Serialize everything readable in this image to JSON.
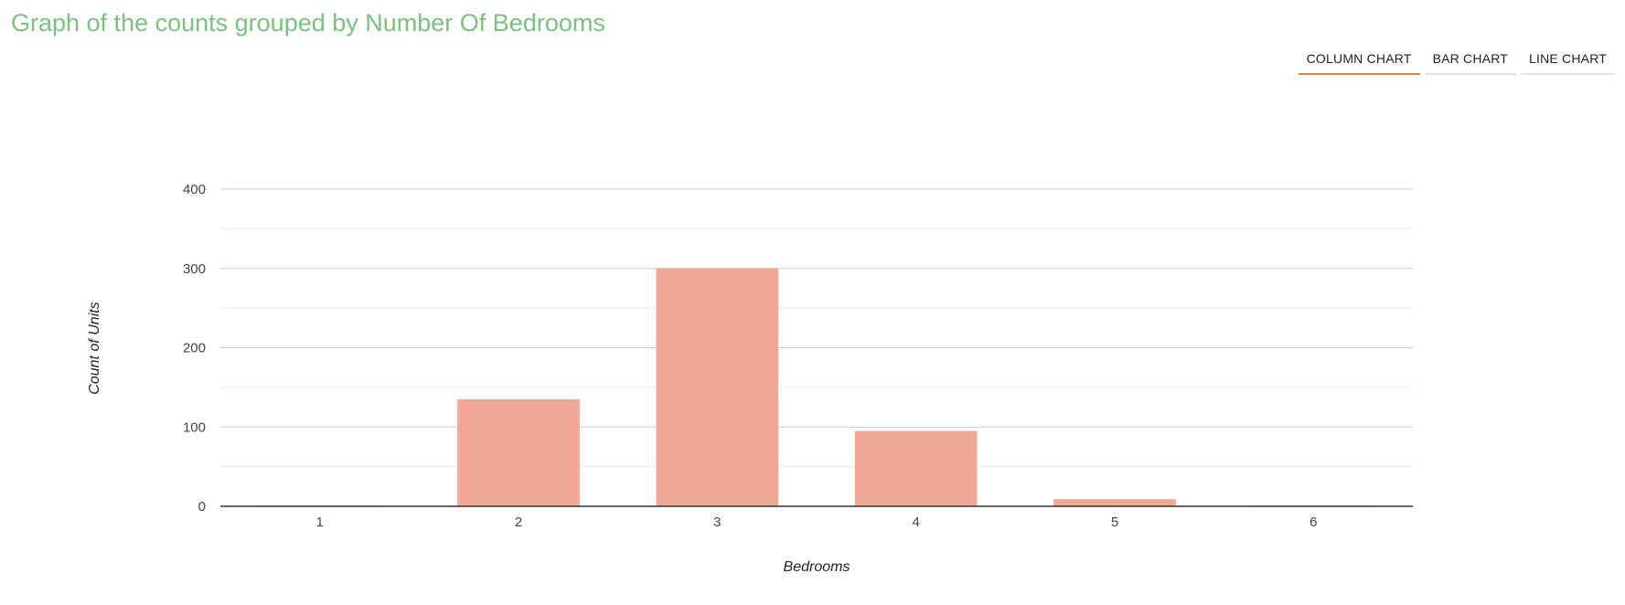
{
  "page": {
    "title": "Graph of the counts grouped by Number Of Bedrooms",
    "title_color": "#7ac17e"
  },
  "tabs": [
    {
      "label": "COLUMN CHART",
      "active": true
    },
    {
      "label": "BAR CHART",
      "active": false
    },
    {
      "label": "LINE CHART",
      "active": false
    }
  ],
  "colors": {
    "bar": "#f0a894",
    "tab_active_underline": "#e0843a",
    "major_grid": "#cccccc",
    "minor_grid": "#ebebeb",
    "baseline": "#333333"
  },
  "chart_data": {
    "type": "bar",
    "title": "Graph of the counts grouped by Number Of Bedrooms",
    "xlabel": "Bedrooms",
    "ylabel": "Count of Units",
    "categories": [
      "1",
      "2",
      "3",
      "4",
      "5",
      "6"
    ],
    "values": [
      1,
      135,
      300,
      95,
      9,
      1
    ],
    "ylim": [
      0,
      400
    ],
    "yticks": [
      0,
      100,
      200,
      300,
      400
    ],
    "grid": true,
    "minor_grid": true,
    "legend": "none"
  }
}
